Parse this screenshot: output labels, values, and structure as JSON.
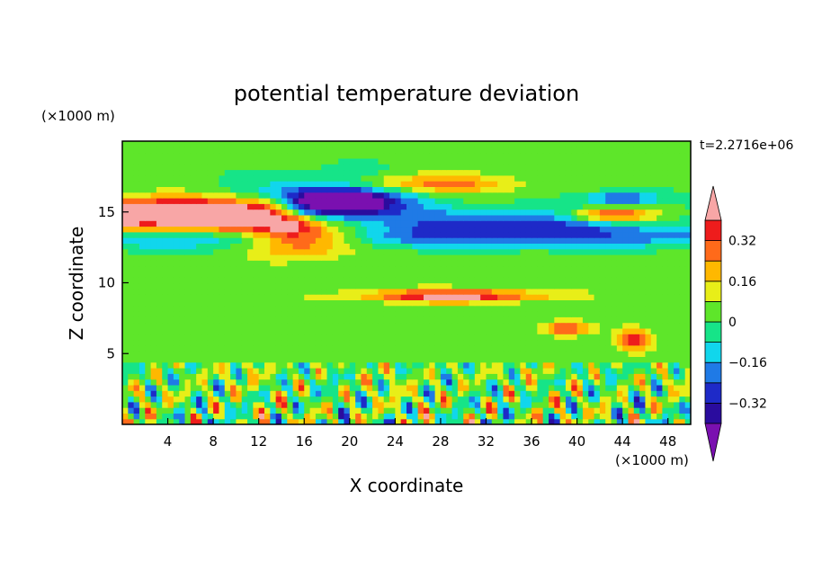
{
  "chart_data": {
    "type": "heatmap",
    "title": "potential temperature deviation",
    "xlabel": "X coordinate",
    "ylabel": "Z coordinate",
    "x_unit_label": "(×1000 m)",
    "y_unit_label": "(×1000 m)",
    "time_label": "t=2.2716e+06",
    "xlim": [
      0,
      50
    ],
    "ylim": [
      0,
      20
    ],
    "x_ticks": [
      4,
      8,
      12,
      16,
      20,
      24,
      28,
      32,
      36,
      40,
      44,
      48
    ],
    "y_ticks": [
      5,
      10,
      15
    ],
    "colorbar": {
      "levels": [
        -0.4,
        -0.32,
        -0.24,
        -0.16,
        -0.08,
        0,
        0.08,
        0.16,
        0.24,
        0.32,
        0.4
      ],
      "labels": [
        "0.32",
        "0.16",
        "0",
        "−0.16",
        "−0.32"
      ],
      "label_values": [
        0.32,
        0.16,
        0,
        -0.16,
        -0.32
      ],
      "colors": [
        "#7a10b0",
        "#2a0c9e",
        "#1e2ac8",
        "#1f7ae6",
        "#11d6ec",
        "#16e488",
        "#5ee62a",
        "#e8ee18",
        "#ffb800",
        "#ff6a1a",
        "#ee1c1c",
        "#f8a6a6"
      ],
      "extend": "both"
    },
    "features": [
      {
        "kind": "layer",
        "value": 0.45,
        "x0": 0,
        "x1": 12,
        "z": 15.2,
        "dz": 0.9
      },
      {
        "kind": "layer",
        "value": 0.3,
        "x0": 0,
        "x1": 14,
        "z": 14.2,
        "dz": 0.8
      },
      {
        "kind": "layer",
        "value": -0.2,
        "x0": 0,
        "x1": 50,
        "z": 13.2,
        "dz": 0.8
      },
      {
        "kind": "blob",
        "value": 0.45,
        "x": 16,
        "z": 13.2,
        "rx": 4.8,
        "rz": 1.2
      },
      {
        "kind": "blob",
        "value": -0.36,
        "x": 19,
        "z": 16.2,
        "rx": 7.0,
        "rz": 1.4
      },
      {
        "kind": "blob",
        "value": -0.42,
        "x": 19,
        "z": 15.6,
        "rx": 4.5,
        "rz": 0.9
      },
      {
        "kind": "blob",
        "value": -0.3,
        "x": 34,
        "z": 14.3,
        "rx": 12.0,
        "rz": 1.0
      },
      {
        "kind": "blob",
        "value": 0.4,
        "x": 43,
        "z": 14.8,
        "rx": 4.0,
        "rz": 0.5
      },
      {
        "kind": "blob",
        "value": -0.3,
        "x": 44,
        "z": 16.0,
        "rx": 3.2,
        "rz": 0.5
      },
      {
        "kind": "blob",
        "value": 0.3,
        "x": 26,
        "z": 17.0,
        "rx": 8.0,
        "rz": 0.7
      },
      {
        "kind": "blob",
        "value": 0.42,
        "x": 29,
        "z": 9.1,
        "rx": 8.0,
        "rz": 0.45
      },
      {
        "kind": "blob",
        "value": 0.35,
        "x": 39,
        "z": 6.8,
        "rx": 2.0,
        "rz": 0.5
      },
      {
        "kind": "blob",
        "value": 0.35,
        "x": 45,
        "z": 6.0,
        "rx": 1.4,
        "rz": 0.7
      },
      {
        "kind": "turbulence",
        "z0": 0,
        "z1": 4.5
      }
    ]
  }
}
